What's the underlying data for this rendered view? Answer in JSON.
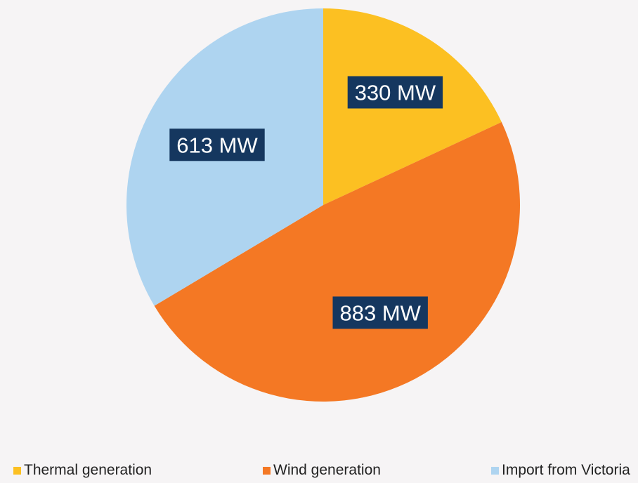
{
  "chart_data": {
    "type": "pie",
    "title": "",
    "unit": "MW",
    "start_angle_deg": 0,
    "direction": "clockwise",
    "legend_position": "bottom",
    "slices": [
      {
        "name": "Thermal generation",
        "value": 330,
        "label": "330 MW",
        "color": "#fcc022"
      },
      {
        "name": "Wind generation",
        "value": 883,
        "label": "883 MW",
        "color": "#f47824"
      },
      {
        "name": "Import from Victoria",
        "value": 613,
        "label": "613 MW",
        "color": "#aed4f0"
      }
    ]
  }
}
